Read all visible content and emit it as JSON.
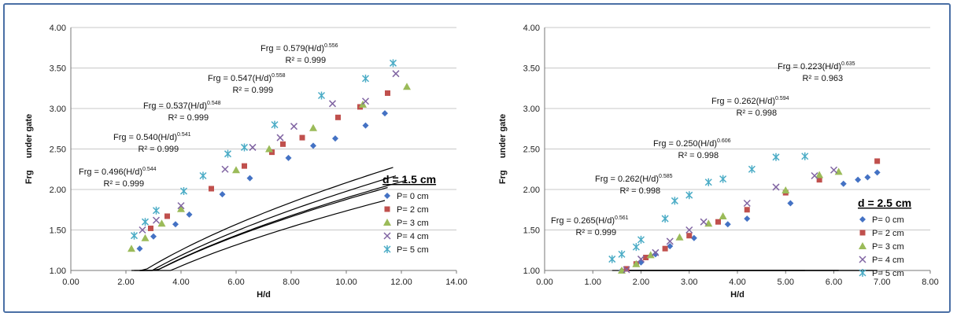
{
  "colors": {
    "frame": "#4a6fa5",
    "grid": "#c8c8c8",
    "fit": "#000000"
  },
  "chart_data": [
    {
      "type": "scatter",
      "panel_label": "d = 1.5 cm",
      "xlabel": "H/d",
      "ylabel": "Frg     under gate",
      "xlim": [
        0,
        14
      ],
      "ylim": [
        1,
        4
      ],
      "x_ticks": [
        "0.00",
        "2.00",
        "4.00",
        "6.00",
        "8.00",
        "10.00",
        "12.00",
        "14.00"
      ],
      "y_ticks": [
        "1.00",
        "1.50",
        "2.00",
        "2.50",
        "3.00",
        "3.50",
        "4.00"
      ],
      "grid": "horizontal",
      "legend_position": "right",
      "series": [
        {
          "name": "P= 0 cm",
          "marker": "diamond",
          "color": "#4472c4",
          "points": [
            [
              2.5,
              1.27
            ],
            [
              3.0,
              1.42
            ],
            [
              3.8,
              1.57
            ],
            [
              4.3,
              1.69
            ],
            [
              5.5,
              1.94
            ],
            [
              6.5,
              2.14
            ],
            [
              7.9,
              2.39
            ],
            [
              8.8,
              2.54
            ],
            [
              9.6,
              2.63
            ],
            [
              10.7,
              2.79
            ],
            [
              11.4,
              2.94
            ]
          ],
          "fit": {
            "a": 0.496,
            "b": 0.544,
            "xrange": [
              2.5,
              11.4
            ]
          }
        },
        {
          "name": "P= 2 cm",
          "marker": "square",
          "color": "#c0504d",
          "points": [
            [
              2.9,
              1.52
            ],
            [
              3.5,
              1.67
            ],
            [
              5.1,
              2.01
            ],
            [
              6.3,
              2.29
            ],
            [
              7.3,
              2.46
            ],
            [
              7.7,
              2.56
            ],
            [
              8.4,
              2.64
            ],
            [
              9.7,
              2.89
            ],
            [
              10.5,
              3.02
            ],
            [
              11.5,
              3.19
            ]
          ],
          "fit": {
            "a": 0.54,
            "b": 0.541,
            "xrange": [
              2.5,
              11.5
            ]
          }
        },
        {
          "name": "P= 3 cm",
          "marker": "triangle",
          "color": "#9bbb59",
          "points": [
            [
              2.2,
              1.27
            ],
            [
              2.7,
              1.4
            ],
            [
              3.3,
              1.58
            ],
            [
              4.0,
              1.76
            ],
            [
              6.0,
              2.24
            ],
            [
              7.2,
              2.5
            ],
            [
              8.8,
              2.76
            ],
            [
              10.6,
              3.05
            ],
            [
              12.2,
              3.27
            ]
          ],
          "fit": {
            "a": 0.537,
            "b": 0.548,
            "xrange": [
              2.2,
              12.2
            ]
          }
        },
        {
          "name": "P= 4 cm",
          "marker": "x",
          "color": "#8064a2",
          "points": [
            [
              2.6,
              1.5
            ],
            [
              3.1,
              1.62
            ],
            [
              4.0,
              1.8
            ],
            [
              5.6,
              2.25
            ],
            [
              6.6,
              2.52
            ],
            [
              7.6,
              2.64
            ],
            [
              8.1,
              2.78
            ],
            [
              9.5,
              3.06
            ],
            [
              10.7,
              3.09
            ],
            [
              11.8,
              3.43
            ]
          ],
          "fit": {
            "a": 0.547,
            "b": 0.558,
            "xrange": [
              2.5,
              11.8
            ]
          }
        },
        {
          "name": "P= 5 cm",
          "marker": "star",
          "color": "#4bacc6",
          "points": [
            [
              2.3,
              1.43
            ],
            [
              2.7,
              1.6
            ],
            [
              3.1,
              1.74
            ],
            [
              4.1,
              1.98
            ],
            [
              4.8,
              2.17
            ],
            [
              5.7,
              2.44
            ],
            [
              6.3,
              2.52
            ],
            [
              7.4,
              2.8
            ],
            [
              9.1,
              3.16
            ],
            [
              10.7,
              3.37
            ],
            [
              11.7,
              3.56
            ]
          ],
          "fit": {
            "a": 0.579,
            "b": 0.556,
            "xrange": [
              2.3,
              11.7
            ]
          }
        }
      ],
      "annotations": [
        {
          "series": "P= 0 cm",
          "lead": "Frg = 0.496(H/d)",
          "exp": "0.544",
          "r2": "R² = 0.999"
        },
        {
          "series": "P= 2 cm",
          "lead": "Frg = 0.540(H/d)",
          "exp": "0.541",
          "r2": "R² = 0.999"
        },
        {
          "series": "P= 3 cm",
          "lead": "Frg = 0.537(H/d)",
          "exp": "0.548",
          "r2": "R² = 0.999"
        },
        {
          "series": "P= 4 cm",
          "lead": "Frg = 0.547(H/d)",
          "exp": "0.558",
          "r2": "R² = 0.999"
        },
        {
          "series": "P= 5 cm",
          "lead": "Frg = 0.579(H/d)",
          "exp": "0.556",
          "r2": "R² = 0.999"
        }
      ]
    },
    {
      "type": "scatter",
      "panel_label": "d = 2.5 cm",
      "xlabel": "H/d",
      "ylabel": "Frg     under gate",
      "xlim": [
        0,
        8
      ],
      "ylim": [
        1,
        4
      ],
      "x_ticks": [
        "0.00",
        "1.00",
        "2.00",
        "3.00",
        "4.00",
        "5.00",
        "6.00",
        "7.00",
        "8.00"
      ],
      "y_ticks": [
        "1.00",
        "1.50",
        "2.00",
        "2.50",
        "3.00",
        "3.50",
        "4.00"
      ],
      "grid": "horizontal",
      "legend_position": "right",
      "series": [
        {
          "name": "P= 0 cm",
          "marker": "diamond",
          "color": "#4472c4",
          "points": [
            [
              1.6,
              1.0
            ],
            [
              2.0,
              1.1
            ],
            [
              2.3,
              1.2
            ],
            [
              2.6,
              1.3
            ],
            [
              3.1,
              1.4
            ],
            [
              3.8,
              1.57
            ],
            [
              4.2,
              1.64
            ],
            [
              5.1,
              1.83
            ],
            [
              6.2,
              2.07
            ],
            [
              6.5,
              2.12
            ],
            [
              6.7,
              2.15
            ],
            [
              6.9,
              2.21
            ]
          ],
          "fit": {
            "a": 0.265,
            "b": 0.561,
            "xrange": [
              1.6,
              6.9
            ]
          }
        },
        {
          "name": "P= 2 cm",
          "marker": "square",
          "color": "#c0504d",
          "points": [
            [
              1.7,
              1.02
            ],
            [
              1.9,
              1.08
            ],
            [
              2.1,
              1.16
            ],
            [
              2.5,
              1.27
            ],
            [
              3.0,
              1.43
            ],
            [
              3.6,
              1.6
            ],
            [
              4.2,
              1.75
            ],
            [
              5.0,
              1.96
            ],
            [
              5.7,
              2.12
            ],
            [
              6.9,
              2.35
            ]
          ],
          "fit": {
            "a": 0.262,
            "b": 0.585,
            "xrange": [
              1.6,
              6.9
            ]
          }
        },
        {
          "name": "P= 3 cm",
          "marker": "triangle",
          "color": "#9bbb59",
          "points": [
            [
              1.6,
              1.0
            ],
            [
              1.9,
              1.08
            ],
            [
              2.2,
              1.19
            ],
            [
              2.8,
              1.41
            ],
            [
              3.4,
              1.58
            ],
            [
              3.7,
              1.67
            ],
            [
              5.0,
              1.99
            ],
            [
              5.7,
              2.18
            ],
            [
              6.1,
              2.22
            ]
          ],
          "fit": {
            "a": 0.25,
            "b": 0.606,
            "xrange": [
              1.6,
              6.1
            ]
          }
        },
        {
          "name": "P= 4 cm",
          "marker": "x",
          "color": "#8064a2",
          "points": [
            [
              1.7,
              1.01
            ],
            [
              2.0,
              1.14
            ],
            [
              2.3,
              1.22
            ],
            [
              2.6,
              1.36
            ],
            [
              3.0,
              1.5
            ],
            [
              3.3,
              1.6
            ],
            [
              4.2,
              1.83
            ],
            [
              4.8,
              2.03
            ],
            [
              5.6,
              2.17
            ],
            [
              6.0,
              2.24
            ]
          ],
          "fit": {
            "a": 0.262,
            "b": 0.594,
            "xrange": [
              1.6,
              6.1
            ]
          }
        },
        {
          "name": "P= 5 cm",
          "marker": "star",
          "color": "#4bacc6",
          "points": [
            [
              1.4,
              1.14
            ],
            [
              1.6,
              1.2
            ],
            [
              1.9,
              1.29
            ],
            [
              2.0,
              1.38
            ],
            [
              2.5,
              1.64
            ],
            [
              2.7,
              1.86
            ],
            [
              3.0,
              1.93
            ],
            [
              3.4,
              2.09
            ],
            [
              3.7,
              2.13
            ],
            [
              4.3,
              2.25
            ],
            [
              4.8,
              2.4
            ],
            [
              5.4,
              2.41
            ]
          ],
          "fit": {
            "a": 0.223,
            "b": 0.635,
            "xrange": [
              1.4,
              5.4
            ]
          }
        }
      ],
      "annotations": [
        {
          "series": "P= 0 cm",
          "lead": "Frg = 0.265(H/d)",
          "exp": "0.561",
          "r2": "R² = 0.999"
        },
        {
          "series": "P= 2 cm",
          "lead": "Frg = 0.262(H/d)",
          "exp": "0.585",
          "r2": "R² = 0.998"
        },
        {
          "series": "P= 3 cm",
          "lead": "Frg = 0.250(H/d)",
          "exp": "0.606",
          "r2": "R² = 0.998"
        },
        {
          "series": "P= 4 cm",
          "lead": "Frg = 0.262(H/d)",
          "exp": "0.594",
          "r2": "R² = 0.998"
        },
        {
          "series": "P= 5 cm",
          "lead": "Frg = 0.223(H/d)",
          "exp": "0.635",
          "r2": "R² = 0.963"
        }
      ]
    }
  ]
}
